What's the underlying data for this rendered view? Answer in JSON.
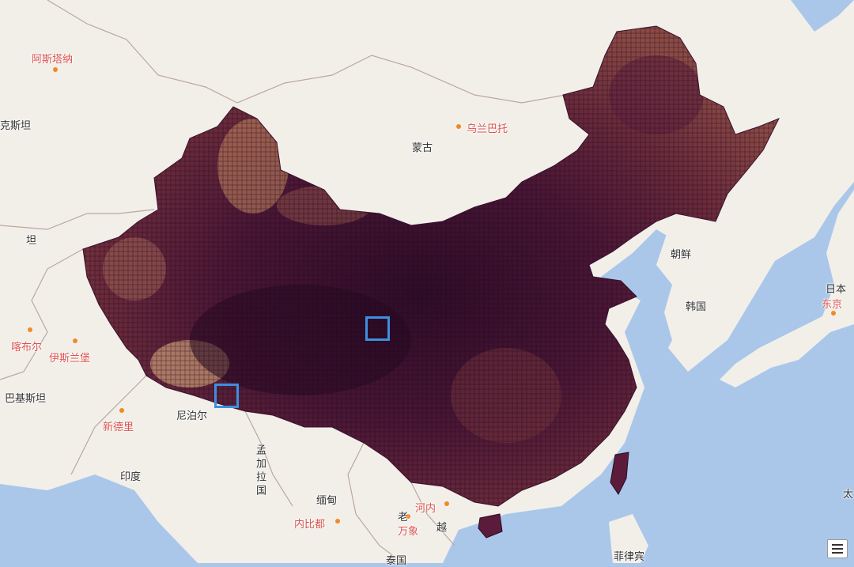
{
  "map": {
    "labels": {
      "astana": "阿斯塔纳",
      "kazakhstan_partial": "克斯坦",
      "ulaanbaatar": "乌兰巴托",
      "mongolia": "蒙古",
      "korea": "朝鲜",
      "south_korea": "韩国",
      "japan": "日本",
      "tokyo": "东京",
      "kabul": "喀布尔",
      "islamabad": "伊斯兰堡",
      "pakistan": "巴基斯坦",
      "new_delhi": "新德里",
      "nepal": "尼泊尔",
      "india": "印度",
      "bangladesh": "孟加拉国",
      "myanmar": "缅甸",
      "naypyidaw": "内比都",
      "laos": "老",
      "vientiane": "万象",
      "hanoi": "河内",
      "vietnam": "越",
      "thailand": "泰国",
      "philippines": "菲律宾",
      "tajik_partial": "坦",
      "pacific_partial": "太"
    },
    "colors": {
      "water": "#aac7ea",
      "land": "#f2efe9",
      "heat_dark": "#2a0c24",
      "heat_light": "#f0c590",
      "selection": "#3d8fe0",
      "city_label": "#d9534f"
    },
    "selected_cells": [
      "cell-central",
      "cell-south-west"
    ]
  }
}
